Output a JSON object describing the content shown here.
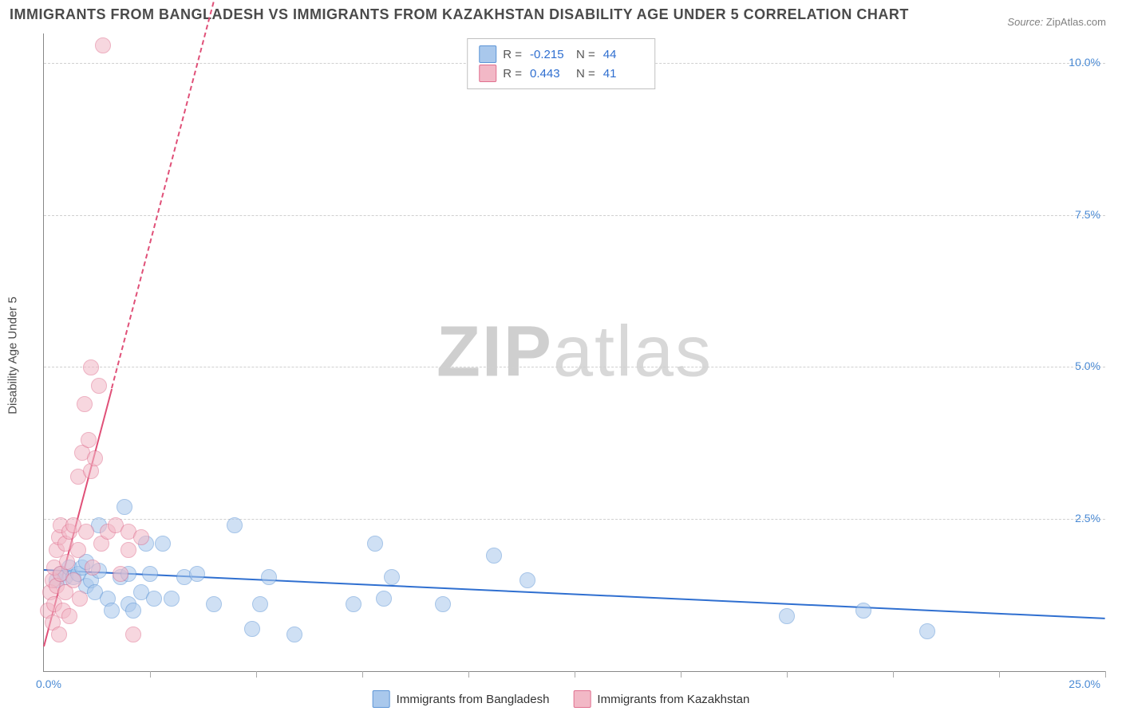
{
  "title": "IMMIGRANTS FROM BANGLADESH VS IMMIGRANTS FROM KAZAKHSTAN DISABILITY AGE UNDER 5 CORRELATION CHART",
  "source_label": "Source:",
  "source_value": "ZipAtlas.com",
  "watermark": {
    "part1": "ZIP",
    "part2": "atlas"
  },
  "yaxis_title": "Disability Age Under 5",
  "chart": {
    "type": "scatter",
    "background_color": "#ffffff",
    "grid_color": "#d0d0d0",
    "axis_color": "#888888",
    "text_color": "#4a4a4a",
    "tick_label_color": "#4a8ad4",
    "title_fontsize": 18,
    "label_fontsize": 15,
    "tick_fontsize": 14,
    "xlim": [
      0,
      25
    ],
    "ylim": [
      0,
      10.5
    ],
    "yticks": [
      2.5,
      5.0,
      7.5,
      10.0
    ],
    "ytick_labels": [
      "2.5%",
      "5.0%",
      "7.5%",
      "10.0%"
    ],
    "xticks": [
      2.5,
      5,
      7.5,
      10,
      12.5,
      15,
      17.5,
      20,
      22.5,
      25
    ],
    "x_origin_label": "0.0%",
    "x_max_label": "25.0%",
    "point_radius": 9,
    "point_opacity": 0.55,
    "series": [
      {
        "key": "bangladesh",
        "label": "Immigrants from Bangladesh",
        "color_fill": "#a9c8ec",
        "color_stroke": "#5d95d6",
        "trend_color": "#2f6fd0",
        "trend_width": 2.5,
        "trend_dash": "solid",
        "trend": {
          "x1": 0,
          "y1": 1.65,
          "x2": 25,
          "y2": 0.85
        },
        "R": "-0.215",
        "N": "44",
        "points": [
          [
            0.3,
            1.5
          ],
          [
            0.4,
            1.6
          ],
          [
            0.5,
            1.55
          ],
          [
            0.6,
            1.7
          ],
          [
            0.7,
            1.55
          ],
          [
            0.8,
            1.6
          ],
          [
            0.9,
            1.7
          ],
          [
            1.0,
            1.4
          ],
          [
            1.0,
            1.8
          ],
          [
            1.1,
            1.5
          ],
          [
            1.2,
            1.3
          ],
          [
            1.3,
            1.65
          ],
          [
            1.3,
            2.4
          ],
          [
            1.5,
            1.2
          ],
          [
            1.6,
            1.0
          ],
          [
            1.8,
            1.55
          ],
          [
            1.9,
            2.7
          ],
          [
            2.0,
            1.1
          ],
          [
            2.0,
            1.6
          ],
          [
            2.1,
            1.0
          ],
          [
            2.3,
            1.3
          ],
          [
            2.4,
            2.1
          ],
          [
            2.5,
            1.6
          ],
          [
            2.6,
            1.2
          ],
          [
            2.8,
            2.1
          ],
          [
            3.0,
            1.2
          ],
          [
            3.3,
            1.55
          ],
          [
            3.6,
            1.6
          ],
          [
            4.0,
            1.1
          ],
          [
            4.5,
            2.4
          ],
          [
            4.9,
            0.7
          ],
          [
            5.1,
            1.1
          ],
          [
            5.3,
            1.55
          ],
          [
            5.9,
            0.6
          ],
          [
            7.3,
            1.1
          ],
          [
            7.8,
            2.1
          ],
          [
            8.0,
            1.2
          ],
          [
            8.2,
            1.55
          ],
          [
            9.4,
            1.1
          ],
          [
            10.6,
            1.9
          ],
          [
            11.4,
            1.5
          ],
          [
            17.5,
            0.9
          ],
          [
            19.3,
            1.0
          ],
          [
            20.8,
            0.65
          ]
        ]
      },
      {
        "key": "kazakhstan",
        "label": "Immigrants from Kazakhstan",
        "color_fill": "#f2b8c6",
        "color_stroke": "#e0708f",
        "trend_color": "#e05078",
        "trend_width": 2.5,
        "trend_solid_until_x": 1.6,
        "trend_dash": "dashed",
        "trend": {
          "x1": 0,
          "y1": 0.4,
          "x2": 4.0,
          "y2": 11.0
        },
        "R": "0.443",
        "N": "41",
        "points": [
          [
            0.1,
            1.0
          ],
          [
            0.15,
            1.3
          ],
          [
            0.2,
            0.8
          ],
          [
            0.2,
            1.5
          ],
          [
            0.25,
            1.1
          ],
          [
            0.25,
            1.7
          ],
          [
            0.3,
            2.0
          ],
          [
            0.3,
            1.4
          ],
          [
            0.35,
            2.2
          ],
          [
            0.35,
            0.6
          ],
          [
            0.4,
            1.6
          ],
          [
            0.4,
            2.4
          ],
          [
            0.45,
            1.0
          ],
          [
            0.5,
            2.1
          ],
          [
            0.5,
            1.3
          ],
          [
            0.55,
            1.8
          ],
          [
            0.6,
            2.3
          ],
          [
            0.6,
            0.9
          ],
          [
            0.7,
            2.4
          ],
          [
            0.7,
            1.5
          ],
          [
            0.8,
            2.0
          ],
          [
            0.8,
            3.2
          ],
          [
            0.85,
            1.2
          ],
          [
            0.9,
            3.6
          ],
          [
            0.95,
            4.4
          ],
          [
            1.0,
            2.3
          ],
          [
            1.05,
            3.8
          ],
          [
            1.1,
            3.3
          ],
          [
            1.1,
            5.0
          ],
          [
            1.15,
            1.7
          ],
          [
            1.2,
            3.5
          ],
          [
            1.3,
            4.7
          ],
          [
            1.35,
            2.1
          ],
          [
            1.4,
            10.3
          ],
          [
            1.5,
            2.3
          ],
          [
            1.7,
            2.4
          ],
          [
            1.8,
            1.6
          ],
          [
            2.0,
            2.3
          ],
          [
            2.1,
            0.6
          ],
          [
            2.3,
            2.2
          ],
          [
            2.0,
            2.0
          ]
        ]
      }
    ]
  },
  "legend_top": {
    "r_label": "R =",
    "n_label": "N ="
  }
}
